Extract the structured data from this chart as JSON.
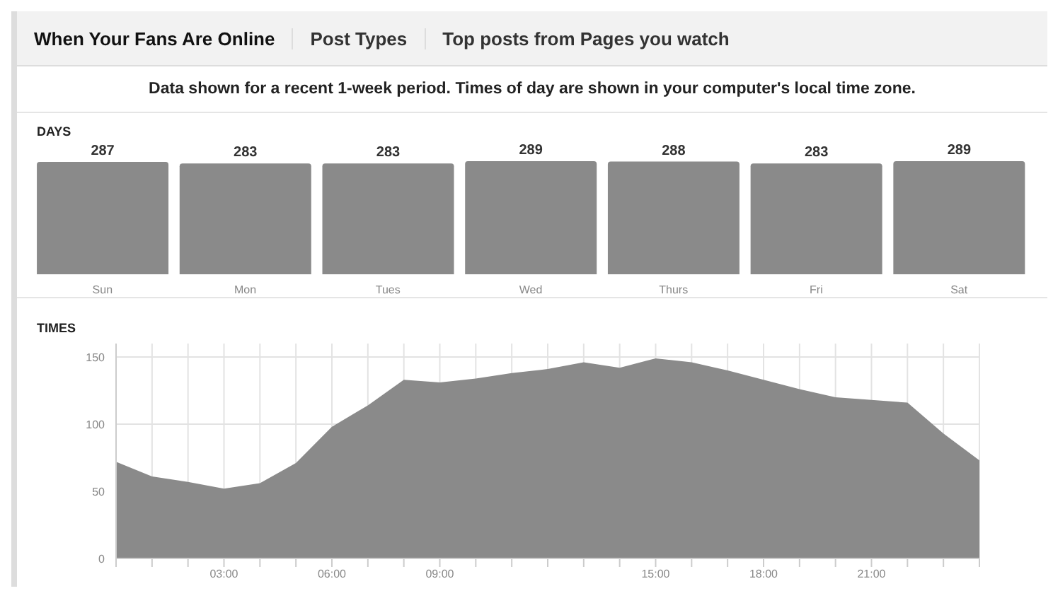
{
  "chart_data": [
    {
      "type": "bar",
      "title": "DAYS",
      "subtitle": "Data shown for a recent 1-week period. Times of day are shown in your computer's local time zone.",
      "annotations": [
        "When Your Fans Are Online",
        "Post Types",
        "Top posts from Pages you watch"
      ],
      "categories": [
        "Sun",
        "Mon",
        "Tues",
        "Wed",
        "Thurs",
        "Fri",
        "Sat"
      ],
      "values": [
        287,
        283,
        283,
        289,
        288,
        283,
        289
      ],
      "color": "#8a8a8a",
      "data_labels": true
    },
    {
      "type": "area",
      "title": "TIMES",
      "x": [
        0,
        1,
        2,
        3,
        4,
        5,
        6,
        7,
        8,
        9,
        10,
        11,
        12,
        13,
        14,
        15,
        16,
        17,
        18,
        19,
        20,
        21,
        22,
        23,
        24
      ],
      "values": [
        72,
        61,
        57,
        52,
        56,
        71,
        98,
        114,
        133,
        131,
        134,
        138,
        141,
        146,
        142,
        149,
        146,
        140,
        133,
        126,
        120,
        118,
        116,
        93,
        73
      ],
      "color": "#8a8a8a",
      "xlim": [
        0,
        24
      ],
      "xticks": [
        {
          "value": 0,
          "label": null
        },
        {
          "value": 1,
          "label": null
        },
        {
          "value": 2,
          "label": null
        },
        {
          "value": 3,
          "label": "03:00"
        },
        {
          "value": 4,
          "label": null
        },
        {
          "value": 5,
          "label": null
        },
        {
          "value": 6,
          "label": "06:00"
        },
        {
          "value": 7,
          "label": null
        },
        {
          "value": 8,
          "label": null
        },
        {
          "value": 9,
          "label": "09:00"
        },
        {
          "value": 10,
          "label": null
        },
        {
          "value": 11,
          "label": null
        },
        {
          "value": 12,
          "label": null
        },
        {
          "value": 13,
          "label": null
        },
        {
          "value": 14,
          "label": null
        },
        {
          "value": 15,
          "label": "15:00"
        },
        {
          "value": 16,
          "label": null
        },
        {
          "value": 17,
          "label": null
        },
        {
          "value": 18,
          "label": "18:00"
        },
        {
          "value": 19,
          "label": null
        },
        {
          "value": 20,
          "label": null
        },
        {
          "value": 21,
          "label": "21:00"
        },
        {
          "value": 22,
          "label": null
        },
        {
          "value": 23,
          "label": null
        },
        {
          "value": 24,
          "label": null
        }
      ],
      "ylim": [
        0,
        160
      ],
      "yticks": [
        0,
        50,
        100,
        150
      ],
      "grid": true
    }
  ]
}
